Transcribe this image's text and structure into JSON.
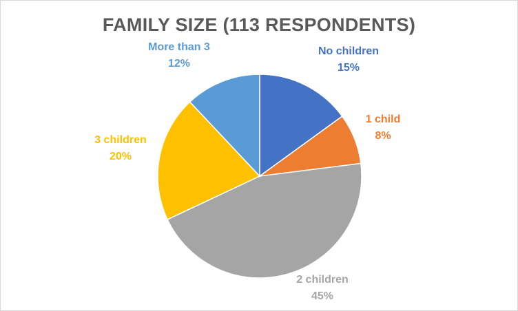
{
  "chart_data": {
    "type": "pie",
    "title": "FAMILY SIZE (113 RESPONDENTS)",
    "unit": "%",
    "categories": [
      "No children",
      "1 child",
      "2 children",
      "3 children",
      "More than 3"
    ],
    "values": [
      15,
      8,
      45,
      20,
      12
    ],
    "value_labels": [
      "15%",
      "8%",
      "45%",
      "20%",
      "12%"
    ],
    "colors": [
      "#4472c4",
      "#ed7d31",
      "#a5a5a5",
      "#ffc000",
      "#5b9bd5"
    ],
    "start_angle": "12 o'clock",
    "direction": "clockwise",
    "legend": "none (category labels shown beside slices)"
  }
}
